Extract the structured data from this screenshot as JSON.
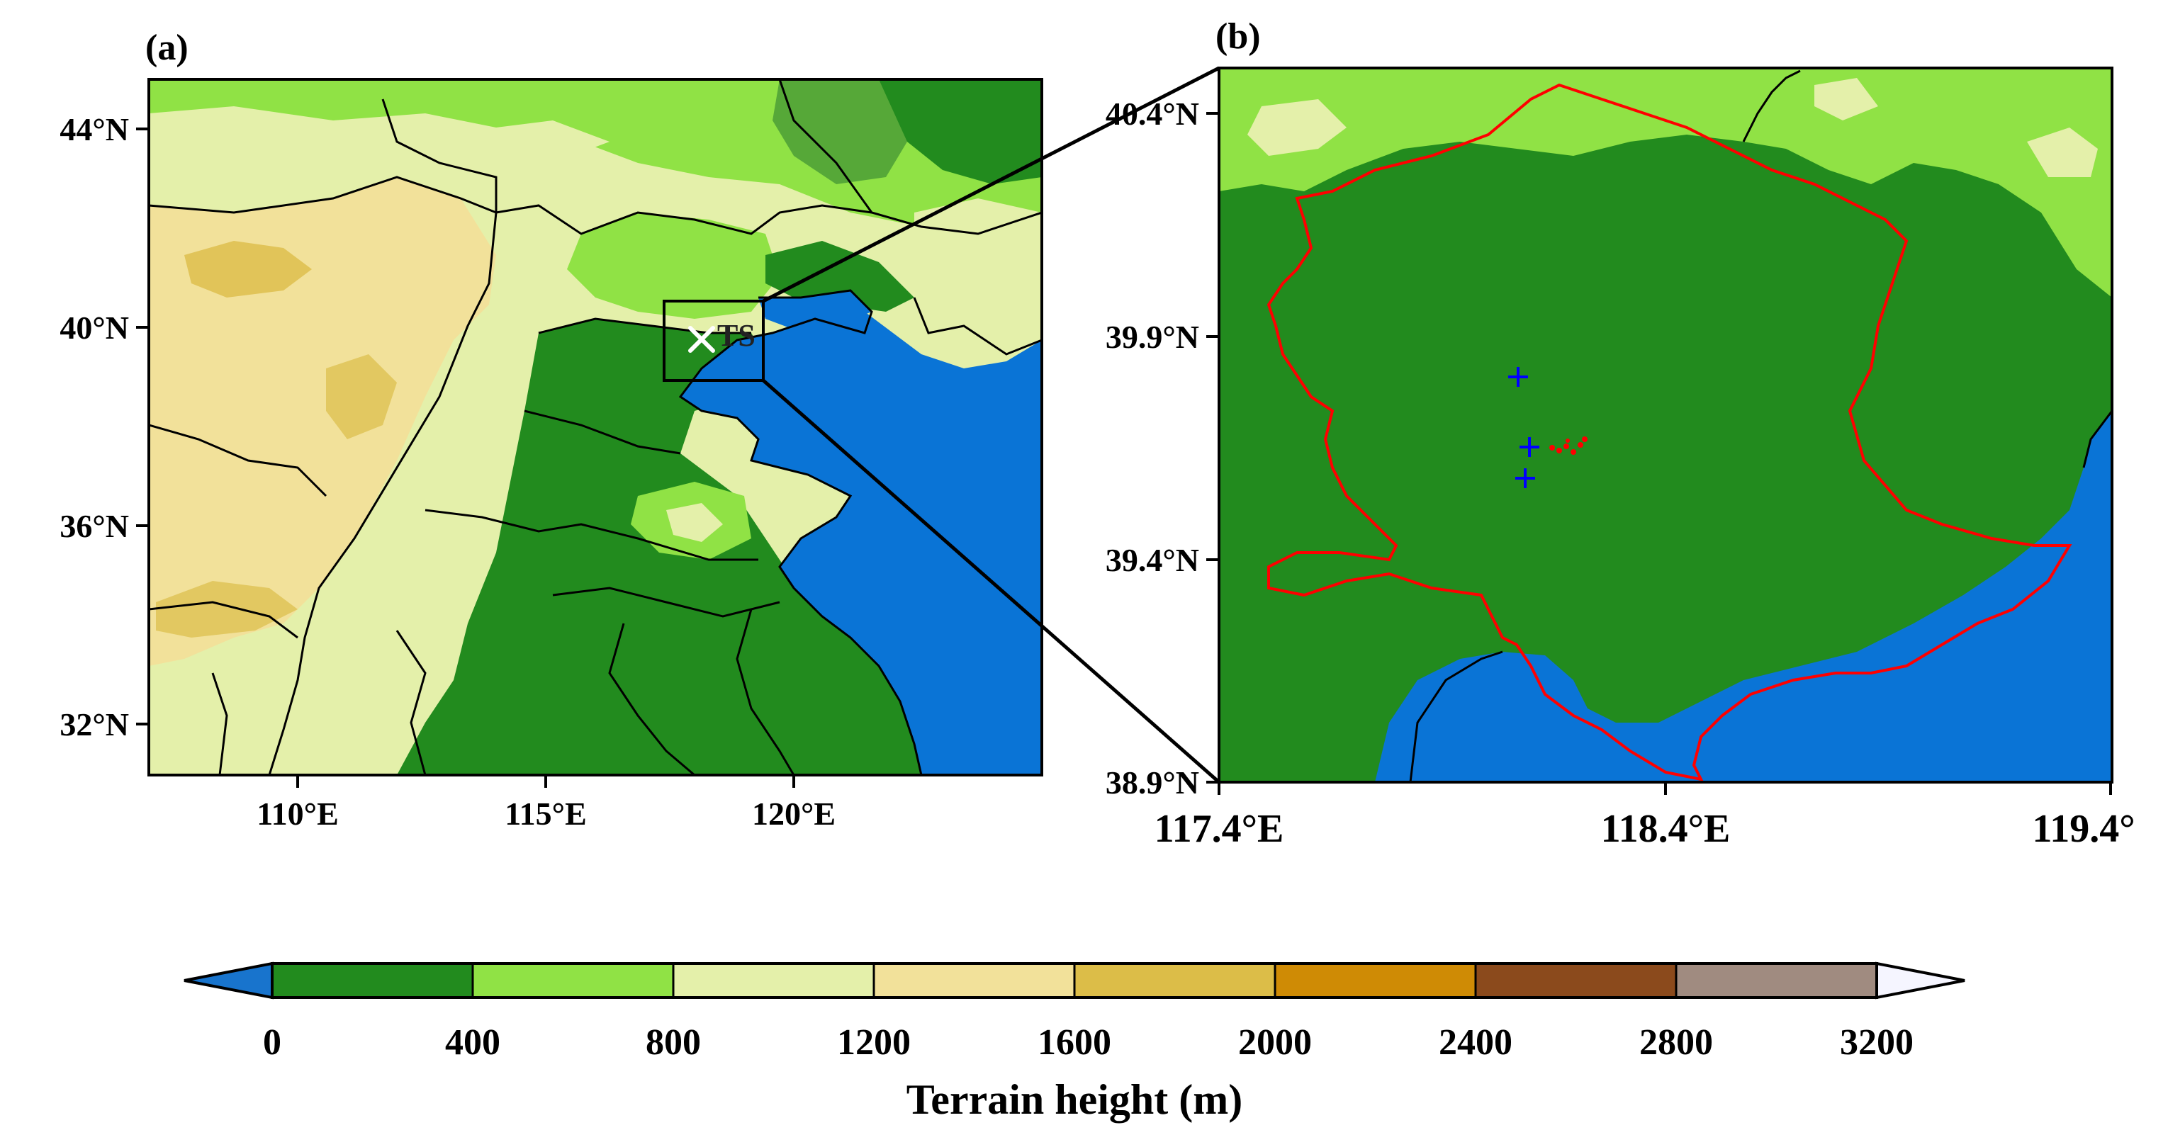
{
  "panel_a": {
    "label": "(a)",
    "lat_ticks": [
      "44°N",
      "40°N",
      "36°N",
      "32°N"
    ],
    "lon_ticks": [
      "110°E",
      "115°E",
      "120°E"
    ],
    "site_label": "TS"
  },
  "panel_b": {
    "label": "(b)",
    "lat_ticks": [
      "40.4°N",
      "39.9°N",
      "39.4°N",
      "38.9°N"
    ],
    "lon_ticks": [
      "117.4°E",
      "118.4°E",
      "119.4°"
    ]
  },
  "colorbar": {
    "title": "Terrain height (m)",
    "tick_labels": [
      "0",
      "400",
      "800",
      "1200",
      "1600",
      "2000",
      "2400",
      "2800",
      "3200"
    ],
    "below_min_color": "#1874cd",
    "above_max_color": "#f5f5ff",
    "colors": [
      "#228b1e",
      "#90e245",
      "#e4f0aa",
      "#f2e19a",
      "#dcbd48",
      "#cf8b05",
      "#8b4a1c",
      "#a08b80"
    ]
  },
  "colors": {
    "sea": "#0a74d6",
    "lowland": "#228b1e",
    "boundary_highlight": "#ff0000",
    "stations": "#0000ff"
  }
}
